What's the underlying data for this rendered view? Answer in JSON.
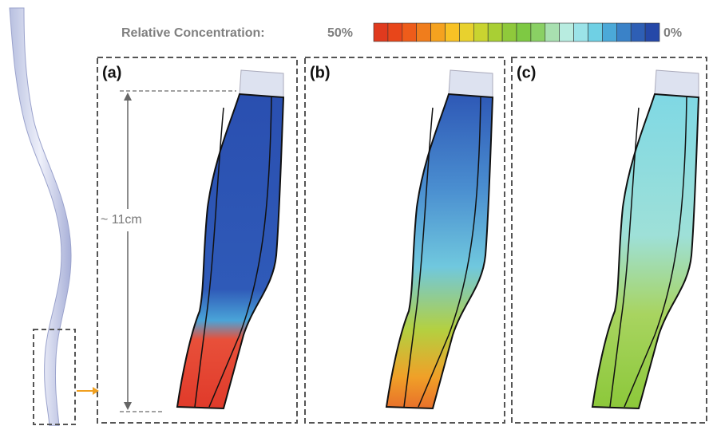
{
  "colorbar": {
    "label": "Relative Concentration:",
    "max_label": "50%",
    "min_label": "0%",
    "colors": [
      "#e03a1e",
      "#e8461a",
      "#ee5c1a",
      "#f07d1c",
      "#f5a21f",
      "#f8c225",
      "#e8d12e",
      "#c9d430",
      "#a9cf34",
      "#8fc93b",
      "#7ec943",
      "#8ad064",
      "#a8e0b0",
      "#b8ece0",
      "#9be3e8",
      "#6fd0e4",
      "#4ba9d8",
      "#3a82c8",
      "#2e5fb5",
      "#2548a8"
    ]
  },
  "panels": [
    {
      "label": "(a)"
    },
    {
      "label": "(b)"
    },
    {
      "label": "(c)"
    }
  ],
  "dimension": {
    "label": "~ 11cm"
  }
}
